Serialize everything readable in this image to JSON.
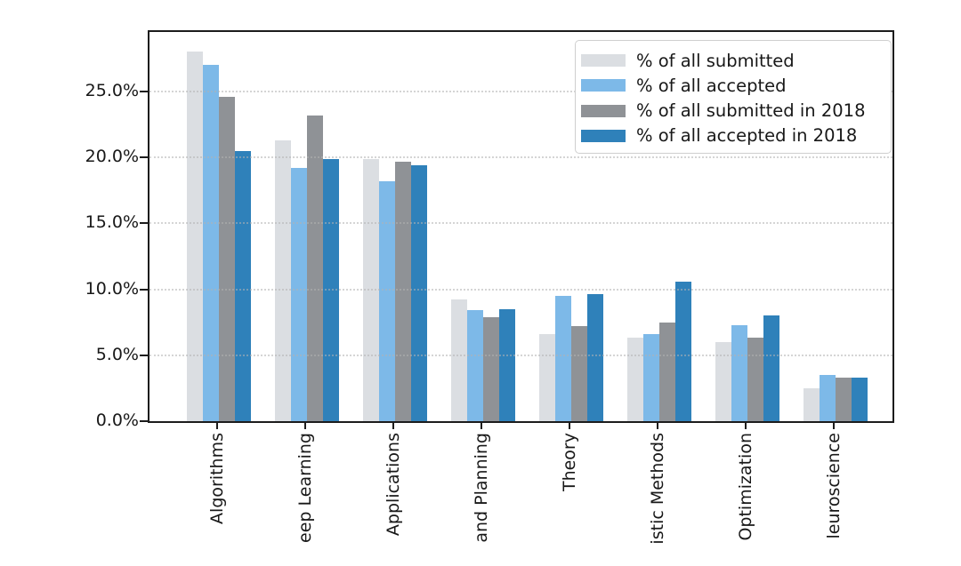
{
  "figure": {
    "background": "#ffffff",
    "axis_color": "#1c1c1c",
    "grid_color": "#b2b2b2",
    "text_color": "#181818"
  },
  "chart_data": {
    "type": "bar",
    "title": "",
    "xlabel": "",
    "ylabel": "",
    "categories": [
      "Algorithms",
      "eep Learning",
      "Applications",
      "and Planning",
      "Theory",
      "istic Methods",
      "Optimization",
      "leuroscience"
    ],
    "series": [
      {
        "name": "% of all submitted",
        "color": "#dbdee2",
        "values": [
          28.0,
          21.3,
          19.9,
          9.2,
          6.6,
          6.3,
          6.0,
          2.5
        ]
      },
      {
        "name": "% of all accepted",
        "color": "#7db9e8",
        "values": [
          27.0,
          19.2,
          18.2,
          8.4,
          9.5,
          6.6,
          7.3,
          3.5
        ]
      },
      {
        "name": "% of all submitted in 2018",
        "color": "#8f9296",
        "values": [
          24.6,
          23.2,
          19.7,
          7.9,
          7.2,
          7.5,
          6.3,
          3.3
        ]
      },
      {
        "name": "% of all accepted in 2018",
        "color": "#2f81ba",
        "values": [
          20.5,
          19.9,
          19.4,
          8.5,
          9.6,
          10.6,
          8.0,
          3.3
        ]
      }
    ],
    "y_ticks": [
      "0.0%",
      "5.0%",
      "10.0%",
      "15.0%",
      "20.0%",
      "25.0%"
    ],
    "y_tick_values": [
      0,
      5,
      10,
      15,
      20,
      25
    ],
    "ylim": [
      0,
      29.5
    ],
    "grid": "horizontal-dotted",
    "legend_position": "upper-right"
  }
}
